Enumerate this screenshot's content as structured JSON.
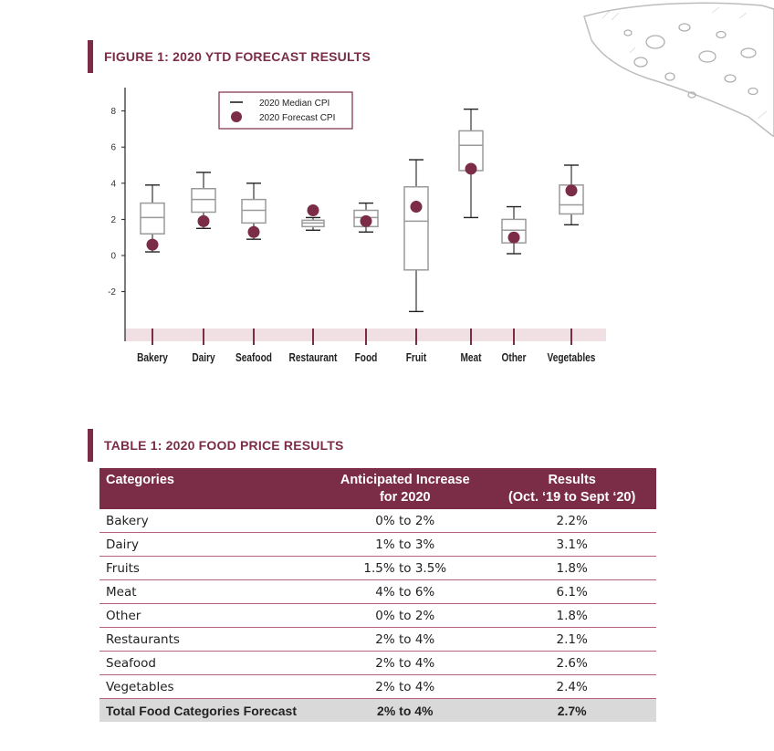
{
  "figure": {
    "title": "FIGURE 1: 2020 YTD FORECAST RESULTS"
  },
  "chart_data": {
    "type": "box",
    "title": "FIGURE 1: 2020 YTD FORECAST RESULTS",
    "ylim": [
      -4,
      8.5
    ],
    "yticks": [
      8,
      6,
      4,
      2,
      0,
      -2
    ],
    "legend": {
      "placement": "top-left",
      "median_label": "2020 Median CPI",
      "forecast_label": "2020 Forecast CPI"
    },
    "categories": [
      "Bakery",
      "Dairy",
      "Seafood",
      "Restaurant",
      "Food",
      "Fruit",
      "Meat",
      "Other",
      "Vegetables"
    ],
    "boxes": [
      {
        "category": "Bakery",
        "min": 0.2,
        "q1": 1.2,
        "median": 2.1,
        "q3": 2.9,
        "max": 3.9,
        "forecast": 0.6
      },
      {
        "category": "Dairy",
        "min": 1.5,
        "q1": 2.4,
        "median": 3.1,
        "q3": 3.7,
        "max": 4.6,
        "forecast": 1.9
      },
      {
        "category": "Seafood",
        "min": 0.9,
        "q1": 1.8,
        "median": 2.5,
        "q3": 3.1,
        "max": 4.0,
        "forecast": 1.3
      },
      {
        "category": "Restaurant",
        "min": 1.4,
        "q1": 1.6,
        "median": 1.8,
        "q3": 1.95,
        "max": 2.1,
        "forecast": 2.5
      },
      {
        "category": "Food",
        "min": 1.3,
        "q1": 1.6,
        "median": 2.1,
        "q3": 2.5,
        "max": 2.9,
        "forecast": 1.9
      },
      {
        "category": "Fruit",
        "min": -3.1,
        "q1": -0.8,
        "median": 1.9,
        "q3": 3.8,
        "max": 5.3,
        "forecast": 2.7
      },
      {
        "category": "Meat",
        "min": 2.1,
        "q1": 4.7,
        "median": 6.1,
        "q3": 6.9,
        "max": 8.1,
        "forecast": 4.8
      },
      {
        "category": "Other",
        "min": 0.1,
        "q1": 0.7,
        "median": 1.4,
        "q3": 2.0,
        "max": 2.7,
        "forecast": 1.0
      },
      {
        "category": "Vegetables",
        "min": 1.7,
        "q1": 2.3,
        "median": 2.8,
        "q3": 3.9,
        "max": 5.0,
        "forecast": 3.6
      }
    ],
    "colors": {
      "box": "#9a9a9a",
      "whisker": "#222222",
      "forecast": "#7b2c47",
      "band": "#f0e0e4",
      "band_tick": "#7b2c47"
    }
  },
  "table": {
    "title": "TABLE 1: 2020 FOOD PRICE RESULTS",
    "headers": {
      "col1": "Categories",
      "col2_line1": "Anticipated Increase",
      "col2_line2": "for 2020",
      "col3_line1": "Results",
      "col3_line2": "(Oct. ‘19 to Sept ‘20)"
    },
    "rows": [
      {
        "category": "Bakery",
        "anticipated": "0% to 2%",
        "result": "2.2%"
      },
      {
        "category": "Dairy",
        "anticipated": "1% to 3%",
        "result": "3.1%"
      },
      {
        "category": "Fruits",
        "anticipated": "1.5% to 3.5%",
        "result": "1.8%"
      },
      {
        "category": "Meat",
        "anticipated": "4% to 6%",
        "result": "6.1%"
      },
      {
        "category": "Other",
        "anticipated": "0% to 2%",
        "result": "1.8%"
      },
      {
        "category": "Restaurants",
        "anticipated": "2% to 4%",
        "result": "2.1%"
      },
      {
        "category": "Seafood",
        "anticipated": "2% to 4%",
        "result": "2.6%"
      },
      {
        "category": "Vegetables",
        "anticipated": "2% to 4%",
        "result": "2.4%"
      }
    ],
    "total": {
      "category": "Total Food Categories Forecast",
      "anticipated": "2% to 4%",
      "result": "2.7%"
    }
  },
  "colors": {
    "accent": "#7b2c47",
    "total_row": "#d9d9d9"
  }
}
